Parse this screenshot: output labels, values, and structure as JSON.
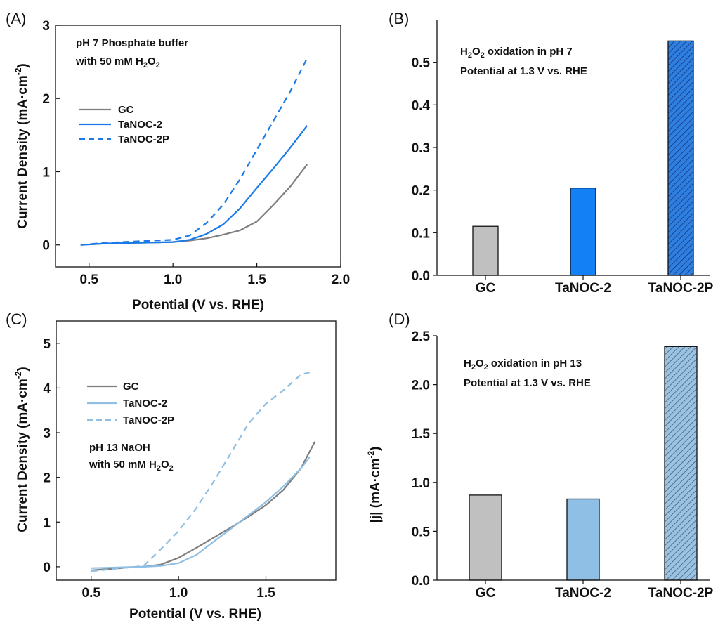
{
  "panels": {
    "A": {
      "label": "(A)",
      "note1": "pH 7 Phosphate buffer",
      "note2_pre": "with 50 mM H",
      "note2_sub": "2",
      "note2_mid": "O",
      "note2_sub2": "2",
      "ylabel": "Current Density (mA·cm",
      "ylabel_sup": "-2",
      "ylabel_end": ")",
      "xlabel": "Potential (V vs. RHE)"
    },
    "B": {
      "label": "(B)",
      "note1_pre": "H",
      "note1_sub": "2",
      "note1_mid": "O",
      "note1_sub2": "2",
      "note1_end": " oxidation in pH 7",
      "note2": "Potential at 1.3 V vs. RHE"
    },
    "C": {
      "label": "(C)",
      "note1": "pH 13 NaOH",
      "note2_pre": "with 50 mM H",
      "note2_sub": "2",
      "note2_mid": "O",
      "note2_sub2": "2",
      "ylabel": "Current Density (mA·cm",
      "ylabel_sup": "-2",
      "ylabel_end": ")",
      "xlabel": "Potential (V vs. RHE)"
    },
    "D": {
      "label": "(D)",
      "note1_pre": "H",
      "note1_sub": "2",
      "note1_mid": "O",
      "note1_sub2": "2",
      "note1_end": " oxidation in pH 13",
      "note2": "Potential at 1.3 V vs. RHE",
      "ylabel": "|j| (mA·cm",
      "ylabel_sup": "-2",
      "ylabel_end": ")"
    }
  },
  "colors": {
    "gc": "#7f7f7f",
    "tanoc2_ph7": "#1a7ae8",
    "tanoc2_ph13": "#8fbfe3",
    "bar_gc": "#c0c0c0",
    "bar_tanoc2_ph7": "#1380f6",
    "bar_tanoc2p_ph7": "#2f7fe0",
    "bar_tanoc2_ph13": "#8fbfe4",
    "bar_tanoc2p_ph13": "#9cc2e2"
  },
  "chart_data": [
    {
      "id": "A",
      "type": "line",
      "xlim": [
        0.3,
        2.0
      ],
      "ylim": [
        -0.3,
        3.0
      ],
      "xticks": [
        "0.5",
        "1.0",
        "1.5",
        "2.0"
      ],
      "xtick_values": [
        0.5,
        1.0,
        1.5,
        2.0
      ],
      "yticks": [
        "0",
        "1",
        "2",
        "3"
      ],
      "ytick_values": [
        0,
        1,
        2,
        3
      ],
      "series": [
        {
          "name": "GC",
          "style": "solid",
          "color": "#7f7f7f",
          "x": [
            0.45,
            0.6,
            0.8,
            1.0,
            1.1,
            1.2,
            1.3,
            1.4,
            1.5,
            1.6,
            1.7,
            1.8
          ],
          "y": [
            0.0,
            0.02,
            0.03,
            0.04,
            0.06,
            0.09,
            0.14,
            0.2,
            0.32,
            0.55,
            0.8,
            1.1
          ]
        },
        {
          "name": "TaNOC-2",
          "style": "solid",
          "color": "#1a7ae8",
          "x": [
            0.45,
            0.6,
            0.8,
            1.0,
            1.1,
            1.2,
            1.3,
            1.4,
            1.5,
            1.6,
            1.7,
            1.8
          ],
          "y": [
            0.0,
            0.02,
            0.03,
            0.04,
            0.07,
            0.15,
            0.28,
            0.5,
            0.78,
            1.05,
            1.33,
            1.63
          ]
        },
        {
          "name": "TaNOC-2P",
          "style": "dashed",
          "color": "#1a7ae8",
          "x": [
            0.45,
            0.6,
            0.8,
            1.0,
            1.1,
            1.2,
            1.3,
            1.4,
            1.5,
            1.6,
            1.7,
            1.8
          ],
          "y": [
            0.0,
            0.03,
            0.05,
            0.07,
            0.13,
            0.3,
            0.55,
            0.9,
            1.3,
            1.7,
            2.1,
            2.55
          ]
        }
      ]
    },
    {
      "id": "B",
      "type": "bar",
      "categories": [
        "GC",
        "TaNOC-2",
        "TaNOC-2P"
      ],
      "values": [
        0.115,
        0.205,
        0.55
      ],
      "ylim": [
        0,
        0.6
      ],
      "yticks": [
        "0.0",
        "0.1",
        "0.2",
        "0.3",
        "0.4",
        "0.5"
      ],
      "ytick_values": [
        0,
        0.1,
        0.2,
        0.3,
        0.4,
        0.5
      ],
      "hatched": [
        false,
        false,
        true
      ]
    },
    {
      "id": "C",
      "type": "line",
      "xlim": [
        0.3,
        1.9
      ],
      "ylim": [
        -0.3,
        5.5
      ],
      "xticks": [
        "0.5",
        "1.0",
        "1.5"
      ],
      "xtick_values": [
        0.5,
        1.0,
        1.5
      ],
      "yticks": [
        "0",
        "1",
        "2",
        "3",
        "4",
        "5"
      ],
      "ytick_values": [
        0,
        1,
        2,
        3,
        4,
        5
      ],
      "series": [
        {
          "name": "GC",
          "style": "solid",
          "color": "#7f7f7f",
          "x": [
            0.5,
            0.6,
            0.7,
            0.8,
            0.9,
            1.0,
            1.1,
            1.2,
            1.3,
            1.4,
            1.5,
            1.6,
            1.7,
            1.78
          ],
          "y": [
            -0.08,
            -0.05,
            -0.02,
            0.0,
            0.05,
            0.2,
            0.42,
            0.65,
            0.88,
            1.12,
            1.38,
            1.72,
            2.2,
            2.8
          ]
        },
        {
          "name": "TaNOC-2",
          "style": "solid",
          "color": "#8fbfe3",
          "x": [
            0.5,
            0.6,
            0.7,
            0.8,
            0.9,
            1.0,
            1.1,
            1.2,
            1.3,
            1.4,
            1.5,
            1.6,
            1.7,
            1.75
          ],
          "y": [
            -0.03,
            -0.02,
            -0.01,
            0.0,
            0.02,
            0.08,
            0.26,
            0.56,
            0.85,
            1.15,
            1.45,
            1.8,
            2.2,
            2.45
          ]
        },
        {
          "name": "TaNOC-2P",
          "style": "dashed",
          "color": "#8fbfe3",
          "x": [
            0.5,
            0.6,
            0.7,
            0.8,
            0.9,
            1.0,
            1.1,
            1.2,
            1.3,
            1.4,
            1.5,
            1.6,
            1.7,
            1.75
          ],
          "y": [
            -0.1,
            -0.06,
            -0.02,
            0.02,
            0.4,
            0.8,
            1.3,
            1.9,
            2.55,
            3.2,
            3.65,
            3.95,
            4.3,
            4.35
          ]
        }
      ]
    },
    {
      "id": "D",
      "type": "bar",
      "categories": [
        "GC",
        "TaNOC-2",
        "TaNOC-2P"
      ],
      "values": [
        0.87,
        0.83,
        2.39
      ],
      "ylim": [
        0,
        2.5
      ],
      "yticks": [
        "0.0",
        "0.5",
        "1.0",
        "1.5",
        "2.0",
        "2.5"
      ],
      "ytick_values": [
        0,
        0.5,
        1.0,
        1.5,
        2.0,
        2.5
      ],
      "ylabel": "|j| (mA·cm-2)",
      "hatched": [
        false,
        false,
        true
      ]
    }
  ]
}
